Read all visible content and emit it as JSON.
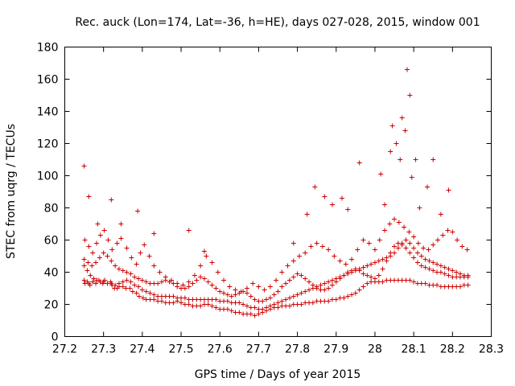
{
  "chart_data": {
    "type": "scatter",
    "title": "Rec. auck (Lon=174, Lat=-36, h=HE), days 027-028, 2015, window 001",
    "xlabel": "GPS time / Days of year 2015",
    "ylabel": "STEC from uqrg / TECUs",
    "xlim": [
      27.2,
      28.3
    ],
    "ylim": [
      0,
      180
    ],
    "xticks": [
      "27.2",
      "27.3",
      "27.4",
      "27.5",
      "27.6",
      "27.7",
      "27.8",
      "27.9",
      "28",
      "28.1",
      "28.2",
      "28.3"
    ],
    "yticks": [
      "0",
      "20",
      "40",
      "60",
      "80",
      "100",
      "120",
      "140",
      "160",
      "180"
    ],
    "grid": false,
    "marker": "+",
    "color": "#cc0000",
    "series": [
      {
        "x": [
          27.25,
          27.252,
          27.258,
          27.262,
          27.265,
          27.272,
          27.28,
          27.288,
          27.292,
          27.298,
          27.303,
          27.31,
          27.318,
          27.322,
          27.328,
          27.335,
          27.34,
          27.35,
          27.358,
          27.368,
          27.375,
          27.385,
          27.392,
          27.402,
          27.41,
          27.42,
          27.43,
          27.44,
          27.45,
          27.46,
          27.47,
          27.48,
          27.49,
          27.5,
          27.51,
          27.52,
          27.53,
          27.54,
          27.55,
          27.56,
          27.57,
          27.58,
          27.59,
          27.6,
          27.61,
          27.62,
          27.63,
          27.64,
          27.65,
          27.66,
          27.67,
          27.68,
          27.69,
          27.7,
          27.71,
          27.72,
          27.73,
          27.74,
          27.75,
          27.76,
          27.77,
          27.78,
          27.79,
          27.8,
          27.81,
          27.82,
          27.83,
          27.84,
          27.85,
          27.86,
          27.87,
          27.88,
          27.89,
          27.9,
          27.91,
          27.92,
          27.93,
          27.94,
          27.95,
          27.96,
          27.97,
          27.98,
          27.99,
          28.0,
          28.01,
          28.02,
          28.03,
          28.04,
          28.05,
          28.06,
          28.07,
          28.08,
          28.09,
          28.1,
          28.11,
          28.12,
          28.13,
          28.14,
          28.15,
          28.16,
          28.17,
          28.18,
          28.19,
          28.2,
          28.21,
          28.22,
          28.23,
          28.24
        ],
        "y": [
          35,
          33,
          34,
          33,
          32,
          34,
          33,
          35,
          34,
          33,
          35,
          33,
          34,
          32,
          30,
          30,
          31,
          31,
          30,
          30,
          28,
          27,
          25,
          24,
          23,
          23,
          23,
          22,
          22,
          21,
          21,
          21,
          22,
          21,
          20,
          20,
          19,
          19,
          19,
          20,
          20,
          19,
          18,
          17,
          17,
          17,
          16,
          15,
          15,
          14,
          14,
          14,
          13,
          14,
          15,
          16,
          17,
          18,
          18,
          19,
          19,
          19,
          20,
          20,
          20,
          21,
          21,
          21,
          22,
          22,
          22,
          22,
          23,
          23,
          24,
          24,
          25,
          26,
          27,
          29,
          31,
          33,
          34,
          34,
          34,
          34,
          35,
          35,
          35,
          35,
          35,
          35,
          35,
          34,
          33,
          33,
          33,
          32,
          32,
          32,
          31,
          31,
          31,
          31,
          31,
          31,
          32,
          32
        ]
      },
      {
        "x": [
          27.25,
          27.258,
          27.266,
          27.275,
          27.283,
          27.292,
          27.3,
          27.31,
          27.32,
          27.33,
          27.34,
          27.35,
          27.36,
          27.37,
          27.38,
          27.39,
          27.4,
          27.41,
          27.42,
          27.43,
          27.44,
          27.45,
          27.46,
          27.47,
          27.48,
          27.49,
          27.5,
          27.51,
          27.52,
          27.53,
          27.54,
          27.55,
          27.56,
          27.57,
          27.58,
          27.59,
          27.6,
          27.61,
          27.62,
          27.63,
          27.64,
          27.65,
          27.66,
          27.67,
          27.68,
          27.69,
          27.7,
          27.71,
          27.72,
          27.73,
          27.74,
          27.75,
          27.76,
          27.77,
          27.78,
          27.79,
          27.8,
          27.81,
          27.82,
          27.83,
          27.84,
          27.85,
          27.86,
          27.87,
          27.88,
          27.89,
          27.9,
          27.91,
          27.92,
          27.93,
          27.94,
          27.95,
          27.96,
          27.97,
          27.98,
          27.99,
          28.0,
          28.01,
          28.02,
          28.03,
          28.04,
          28.05,
          28.06,
          28.07,
          28.08,
          28.09,
          28.1,
          28.11,
          28.12,
          28.13,
          28.14,
          28.15,
          28.16,
          28.17,
          28.18,
          28.19,
          28.2,
          28.21,
          28.22,
          28.23,
          28.24
        ],
        "y": [
          44,
          41,
          38,
          36,
          35,
          34,
          34,
          33,
          33,
          32,
          33,
          34,
          35,
          34,
          32,
          31,
          29,
          28,
          27,
          26,
          25,
          25,
          25,
          25,
          25,
          24,
          24,
          24,
          23,
          23,
          23,
          23,
          23,
          23,
          23,
          23,
          22,
          22,
          22,
          21,
          21,
          21,
          20,
          19,
          18,
          18,
          17,
          17,
          18,
          19,
          20,
          21,
          22,
          23,
          24,
          25,
          26,
          27,
          28,
          29,
          30,
          31,
          32,
          33,
          34,
          35,
          36,
          37,
          38,
          39,
          40,
          41,
          42,
          43,
          44,
          45,
          46,
          47,
          48,
          49,
          50,
          52,
          55,
          58,
          60,
          58,
          55,
          52,
          50,
          48,
          47,
          46,
          45,
          44,
          43,
          42,
          41,
          40,
          39,
          38,
          38
        ]
      },
      {
        "x": [
          27.25,
          27.26,
          27.27,
          27.28,
          27.29,
          27.3,
          27.31,
          27.32,
          27.33,
          27.34,
          27.35,
          27.36,
          27.37,
          27.38,
          27.39,
          27.4,
          27.41,
          27.42,
          27.43,
          27.44,
          27.45,
          27.46,
          27.47,
          27.48,
          27.49,
          27.5,
          27.51,
          27.52,
          27.53,
          27.54,
          27.55,
          27.56,
          27.57,
          27.58,
          27.59,
          27.6,
          27.61,
          27.62,
          27.63,
          27.64,
          27.65,
          27.66,
          27.67,
          27.68,
          27.69,
          27.7,
          27.71,
          27.72,
          27.73,
          27.74,
          27.75,
          27.76,
          27.77,
          27.78,
          27.79,
          27.8,
          27.81,
          27.82,
          27.83,
          27.84,
          27.85,
          27.86,
          27.87,
          27.88,
          27.89,
          27.9,
          27.91,
          27.92,
          27.93,
          27.94,
          27.95,
          27.96,
          27.97,
          27.98,
          27.99,
          28.0,
          28.01,
          28.02,
          28.03,
          28.04,
          28.05,
          28.06,
          28.07,
          28.08,
          28.09,
          28.1,
          28.11,
          28.12,
          28.13,
          28.14,
          28.15,
          28.16,
          28.17,
          28.18,
          28.19,
          28.2,
          28.21,
          28.22,
          28.23,
          28.24
        ],
        "y": [
          48,
          46,
          44,
          46,
          49,
          52,
          50,
          47,
          44,
          42,
          41,
          40,
          39,
          37,
          36,
          35,
          34,
          33,
          33,
          33,
          34,
          35,
          34,
          33,
          31,
          30,
          30,
          31,
          33,
          35,
          37,
          36,
          34,
          32,
          30,
          28,
          27,
          26,
          25,
          26,
          27,
          28,
          27,
          25,
          23,
          22,
          22,
          23,
          24,
          26,
          28,
          31,
          33,
          35,
          37,
          39,
          38,
          36,
          34,
          32,
          30,
          29,
          29,
          30,
          32,
          34,
          36,
          38,
          40,
          41,
          42,
          41,
          39,
          38,
          37,
          36,
          38,
          42,
          47,
          52,
          56,
          58,
          57,
          55,
          52,
          49,
          46,
          44,
          43,
          42,
          41,
          40,
          40,
          39,
          38,
          37,
          37,
          37,
          37,
          37
        ]
      },
      {
        "x": [
          27.252,
          27.262,
          27.272,
          27.282,
          27.292,
          27.302,
          27.312,
          27.322,
          27.335,
          27.345,
          27.36,
          27.372,
          27.385,
          27.395,
          27.405,
          27.418,
          27.43,
          27.445,
          27.46,
          27.475,
          27.49,
          27.505,
          27.52,
          27.535,
          27.55,
          27.565,
          27.58,
          27.595,
          27.61,
          27.625,
          27.64,
          27.655,
          27.67,
          27.685,
          27.7,
          27.715,
          27.73,
          27.745,
          27.76,
          27.775,
          27.79,
          27.805,
          27.82,
          27.835,
          27.85,
          27.865,
          27.88,
          27.895,
          27.91,
          27.925,
          27.94,
          27.955,
          27.97,
          27.985,
          28.0,
          28.012,
          28.025,
          28.038,
          28.05,
          28.062,
          28.075,
          28.088,
          28.1,
          28.112,
          28.125,
          28.138,
          28.15,
          28.162,
          28.175,
          28.188,
          28.2,
          28.212,
          28.225,
          28.238
        ],
        "y": [
          60,
          56,
          52,
          58,
          63,
          66,
          60,
          54,
          58,
          61,
          55,
          49,
          45,
          52,
          57,
          50,
          44,
          40,
          37,
          35,
          33,
          32,
          34,
          38,
          44,
          50,
          46,
          40,
          35,
          31,
          29,
          28,
          30,
          33,
          31,
          29,
          31,
          35,
          40,
          44,
          47,
          50,
          52,
          56,
          58,
          56,
          54,
          50,
          47,
          45,
          48,
          54,
          60,
          58,
          54,
          60,
          66,
          70,
          73,
          71,
          68,
          65,
          62,
          58,
          55,
          54,
          57,
          60,
          63,
          66,
          65,
          60,
          56,
          54
        ]
      },
      {
        "x": [
          27.25,
          27.262,
          27.285,
          27.32,
          27.345,
          27.388,
          27.43,
          27.52,
          27.56,
          27.79,
          27.825,
          27.845,
          27.87,
          27.89,
          27.915,
          27.93,
          27.96,
          28.015,
          28.025,
          28.04,
          28.045,
          28.055,
          28.065,
          28.07,
          28.078,
          28.083,
          28.09,
          28.095,
          28.105,
          28.115,
          28.135,
          28.15,
          28.17,
          28.19
        ],
        "y": [
          106,
          87,
          70,
          85,
          70,
          78,
          64,
          66,
          53,
          58,
          76,
          93,
          87,
          82,
          86,
          79,
          108,
          101,
          82,
          115,
          131,
          120,
          110,
          136,
          128,
          166,
          150,
          99,
          110,
          80,
          93,
          110,
          76,
          91
        ]
      }
    ]
  }
}
